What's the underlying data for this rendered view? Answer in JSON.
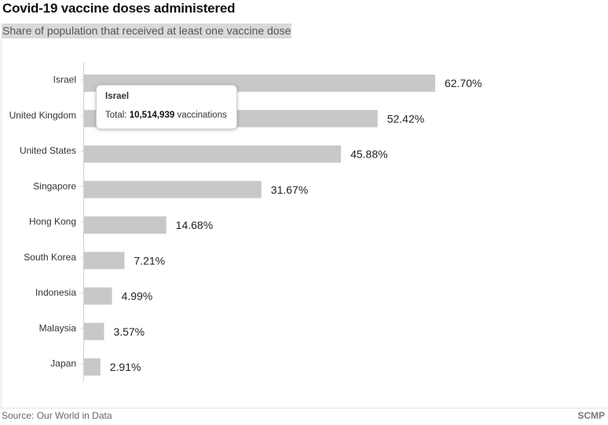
{
  "title": "Covid-19 vaccine doses administered",
  "subtitle": "Share of population that received at least one vaccine dose",
  "chart_data": {
    "type": "bar",
    "orientation": "horizontal",
    "categories": [
      "Israel",
      "United Kingdom",
      "United States",
      "Singapore",
      "Hong Kong",
      "South Korea",
      "Indonesia",
      "Malaysia",
      "Japan"
    ],
    "values": [
      62.7,
      52.42,
      45.88,
      31.67,
      14.68,
      7.21,
      4.99,
      3.57,
      2.91
    ],
    "data_labels": [
      "62.70%",
      "52.42%",
      "45.88%",
      "31.67%",
      "14.68%",
      "7.21%",
      "4.99%",
      "3.57%",
      "2.91%"
    ],
    "title": "Covid-19 vaccine doses administered",
    "xlabel": "",
    "ylabel": "",
    "xlim": [
      0,
      64
    ],
    "grid": false,
    "bar_color": "#c8c8c8"
  },
  "tooltip": {
    "country": "Israel",
    "prefix": "Total: ",
    "value": "10,514,939",
    "suffix": " vaccinations"
  },
  "footer": {
    "source": "Source: Our World in Data",
    "brand": "SCMP"
  }
}
